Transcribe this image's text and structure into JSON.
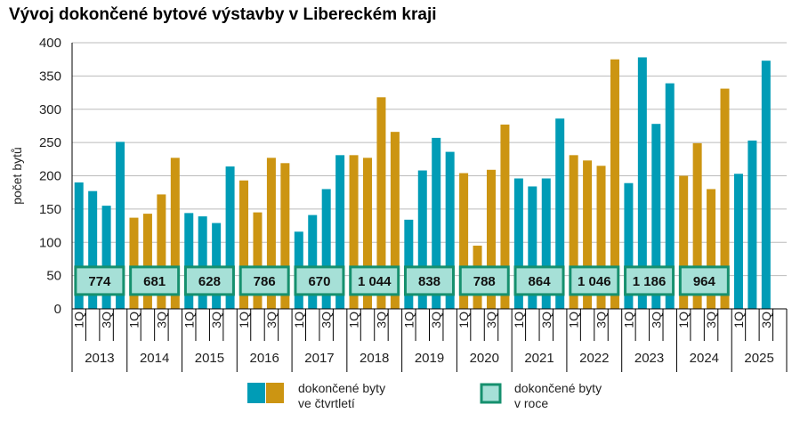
{
  "chart_data": {
    "type": "bar",
    "title": "Vývoj dokončené bytové výstavby v Libereckém kraji",
    "ylabel": "počet bytů",
    "ylim": [
      0,
      400
    ],
    "yticks": [
      0,
      50,
      100,
      150,
      200,
      250,
      300,
      350,
      400
    ],
    "grid": true,
    "legend_position": "bottom",
    "colors": {
      "teal": "#009cb6",
      "gold": "#cc9512",
      "box_fill": "#a6e0d7",
      "box_border": "#16906e"
    },
    "quarter_tick_labels": [
      "1Q",
      "3Q"
    ],
    "years": [
      {
        "year": "2013",
        "quarters": [
          190,
          177,
          155,
          251
        ],
        "annual": "774",
        "color": "teal"
      },
      {
        "year": "2014",
        "quarters": [
          137,
          143,
          172,
          227
        ],
        "annual": "681",
        "color": "gold"
      },
      {
        "year": "2015",
        "quarters": [
          144,
          139,
          129,
          214
        ],
        "annual": "628",
        "color": "teal"
      },
      {
        "year": "2016",
        "quarters": [
          193,
          145,
          227,
          219
        ],
        "annual": "786",
        "color": "gold"
      },
      {
        "year": "2017",
        "quarters": [
          116,
          141,
          180,
          231
        ],
        "annual": "670",
        "color": "teal"
      },
      {
        "year": "2018",
        "quarters": [
          231,
          227,
          318,
          266
        ],
        "annual": "1 044",
        "color": "gold"
      },
      {
        "year": "2019",
        "quarters": [
          134,
          208,
          257,
          236
        ],
        "annual": "838",
        "color": "teal"
      },
      {
        "year": "2020",
        "quarters": [
          204,
          95,
          209,
          277
        ],
        "annual": "788",
        "color": "gold"
      },
      {
        "year": "2021",
        "quarters": [
          196,
          184,
          196,
          286
        ],
        "annual": "864",
        "color": "teal"
      },
      {
        "year": "2022",
        "quarters": [
          231,
          223,
          215,
          375
        ],
        "annual": "1 046",
        "color": "gold"
      },
      {
        "year": "2023",
        "quarters": [
          189,
          378,
          278,
          339
        ],
        "annual": "1 186",
        "color": "teal"
      },
      {
        "year": "2024",
        "quarters": [
          200,
          249,
          180,
          331
        ],
        "annual": "964",
        "color": "gold"
      },
      {
        "year": "2025",
        "quarters": [
          203,
          253,
          373
        ],
        "annual": null,
        "color": "teal"
      }
    ],
    "legend": {
      "quarterly": "dokončené  byty\nve čtvrtletí",
      "annual": "dokončené byty\nv roce"
    }
  }
}
